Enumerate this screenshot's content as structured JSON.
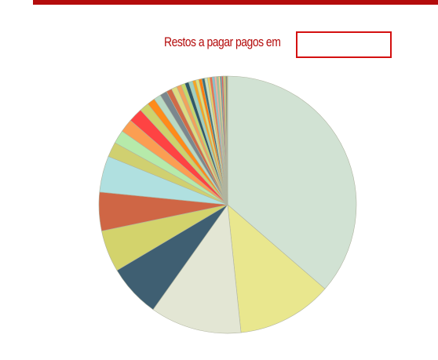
{
  "header": {
    "accent_color": "#b40c0c"
  },
  "filter": {
    "label": "Restos a pagar pagos em",
    "value": "",
    "border_color": "#d41010"
  },
  "chart_data": {
    "type": "pie",
    "slice_stroke": "#b0b4a0",
    "slices": [
      {
        "value": 36.7,
        "color": "#d1e2d3"
      },
      {
        "value": 12.1,
        "color": "#e9e78e"
      },
      {
        "value": 11.6,
        "color": "#e3e6d4"
      },
      {
        "value": 6.7,
        "color": "#3f5f72"
      },
      {
        "value": 5.3,
        "color": "#d3d36c"
      },
      {
        "value": 4.9,
        "color": "#cf6645"
      },
      {
        "value": 4.6,
        "color": "#b0e0e0"
      },
      {
        "value": 1.9,
        "color": "#d0d070"
      },
      {
        "value": 1.7,
        "color": "#b6eaaa"
      },
      {
        "value": 1.7,
        "color": "#fb9e52"
      },
      {
        "value": 1.8,
        "color": "#fe4343"
      },
      {
        "value": 1.2,
        "color": "#cdd36c"
      },
      {
        "value": 1.0,
        "color": "#ff8b1a"
      },
      {
        "value": 0.9,
        "color": "#b8d9c4"
      },
      {
        "value": 0.9,
        "color": "#7a878e"
      },
      {
        "value": 0.7,
        "color": "#d16a47"
      },
      {
        "value": 0.7,
        "color": "#dddc82"
      },
      {
        "value": 0.6,
        "color": "#f2a25c"
      },
      {
        "value": 0.5,
        "color": "#c5d96a"
      },
      {
        "value": 0.5,
        "color": "#2e5868"
      },
      {
        "value": 0.5,
        "color": "#9fd1c1"
      },
      {
        "value": 0.4,
        "color": "#f5a623"
      },
      {
        "value": 0.4,
        "color": "#e0e17a"
      },
      {
        "value": 0.4,
        "color": "#ff7f0e"
      },
      {
        "value": 0.35,
        "color": "#3d6e7a"
      },
      {
        "value": 0.35,
        "color": "#c9e3c2"
      },
      {
        "value": 0.3,
        "color": "#f0d060"
      },
      {
        "value": 0.3,
        "color": "#e86f4f"
      },
      {
        "value": 0.3,
        "color": "#88c0d0"
      },
      {
        "value": 0.25,
        "color": "#f6b0a4"
      },
      {
        "value": 0.25,
        "color": "#98c79a"
      },
      {
        "value": 0.2,
        "color": "#ffd38a"
      },
      {
        "value": 0.2,
        "color": "#6a8fa0"
      },
      {
        "value": 0.2,
        "color": "#e05b5b"
      },
      {
        "value": 0.15,
        "color": "#b1cf86"
      },
      {
        "value": 0.15,
        "color": "#f9c74f"
      },
      {
        "value": 0.15,
        "color": "#5c7a66"
      },
      {
        "value": 0.1,
        "color": "#c0a060"
      }
    ]
  }
}
